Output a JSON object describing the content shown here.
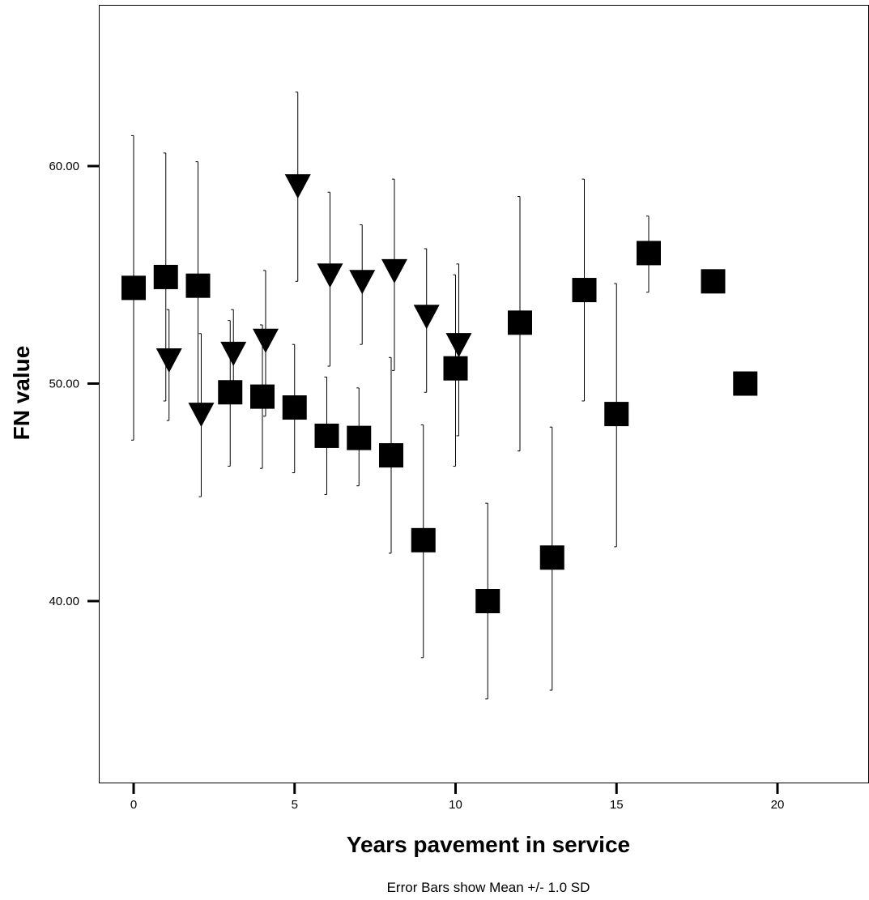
{
  "chart_data": {
    "type": "scatter",
    "title": "",
    "xlabel": "Years pavement in service",
    "ylabel": "FN value",
    "caption": "Error Bars show Mean +/- 1.0 SD",
    "xlim": [
      -1,
      23
    ],
    "ylim": [
      32,
      65
    ],
    "xticks": [
      0,
      5,
      10,
      15,
      20
    ],
    "xtick_labels": [
      "0",
      "5",
      "10",
      "15",
      "20"
    ],
    "yticks": [
      40,
      50,
      60
    ],
    "ytick_labels": [
      "40.00",
      "50.00",
      "60.00"
    ],
    "grid": false,
    "legend": "none",
    "error_bars": "mean +/- 1.0 SD",
    "series": [
      {
        "marker": "square",
        "color": "#000000",
        "points": [
          {
            "x": 0,
            "y": 54.4,
            "low": 47.4,
            "high": 61.4
          },
          {
            "x": 1,
            "y": 54.9,
            "low": 49.2,
            "high": 60.6
          },
          {
            "x": 2,
            "y": 54.5,
            "low": 48.7,
            "high": 60.2
          },
          {
            "x": 3,
            "y": 49.6,
            "low": 46.2,
            "high": 52.9
          },
          {
            "x": 4,
            "y": 49.4,
            "low": 46.1,
            "high": 52.7
          },
          {
            "x": 5,
            "y": 48.9,
            "low": 45.9,
            "high": 51.8
          },
          {
            "x": 6,
            "y": 47.6,
            "low": 44.9,
            "high": 50.3
          },
          {
            "x": 7,
            "y": 47.5,
            "low": 45.3,
            "high": 49.8
          },
          {
            "x": 8,
            "y": 46.7,
            "low": 42.2,
            "high": 51.2
          },
          {
            "x": 9,
            "y": 42.8,
            "low": 37.4,
            "high": 48.1
          },
          {
            "x": 10,
            "y": 50.7,
            "low": 46.2,
            "high": 55.0
          },
          {
            "x": 11,
            "y": 40.0,
            "low": 35.5,
            "high": 44.5
          },
          {
            "x": 12,
            "y": 52.8,
            "low": 46.9,
            "high": 58.6
          },
          {
            "x": 13,
            "y": 42.0,
            "low": 35.9,
            "high": 48.0
          },
          {
            "x": 14,
            "y": 54.3,
            "low": 49.2,
            "high": 59.4
          },
          {
            "x": 15,
            "y": 48.6,
            "low": 42.5,
            "high": 54.6
          },
          {
            "x": 16,
            "y": 56.0,
            "low": 54.2,
            "high": 57.7
          },
          {
            "x": 18,
            "y": 54.7,
            "low": null,
            "high": null
          },
          {
            "x": 19,
            "y": 50.0,
            "low": null,
            "high": null
          }
        ]
      },
      {
        "marker": "triangle-down",
        "color": "#000000",
        "points": [
          {
            "x": 1.1,
            "y": 51.1,
            "low": 48.3,
            "high": 53.4
          },
          {
            "x": 2.1,
            "y": 48.6,
            "low": 44.8,
            "high": 52.3
          },
          {
            "x": 3.1,
            "y": 51.4,
            "low": 49.5,
            "high": 53.4
          },
          {
            "x": 4.1,
            "y": 52.0,
            "low": 48.5,
            "high": 55.2
          },
          {
            "x": 5.1,
            "y": 59.1,
            "low": 54.7,
            "high": 63.4
          },
          {
            "x": 6.1,
            "y": 55.0,
            "low": 50.8,
            "high": 58.8
          },
          {
            "x": 7.1,
            "y": 54.7,
            "low": 51.8,
            "high": 57.3
          },
          {
            "x": 8.1,
            "y": 55.2,
            "low": 50.6,
            "high": 59.4
          },
          {
            "x": 9.1,
            "y": 53.1,
            "low": 49.6,
            "high": 56.2
          },
          {
            "x": 10.1,
            "y": 51.8,
            "low": 47.6,
            "high": 55.5
          }
        ]
      }
    ]
  }
}
